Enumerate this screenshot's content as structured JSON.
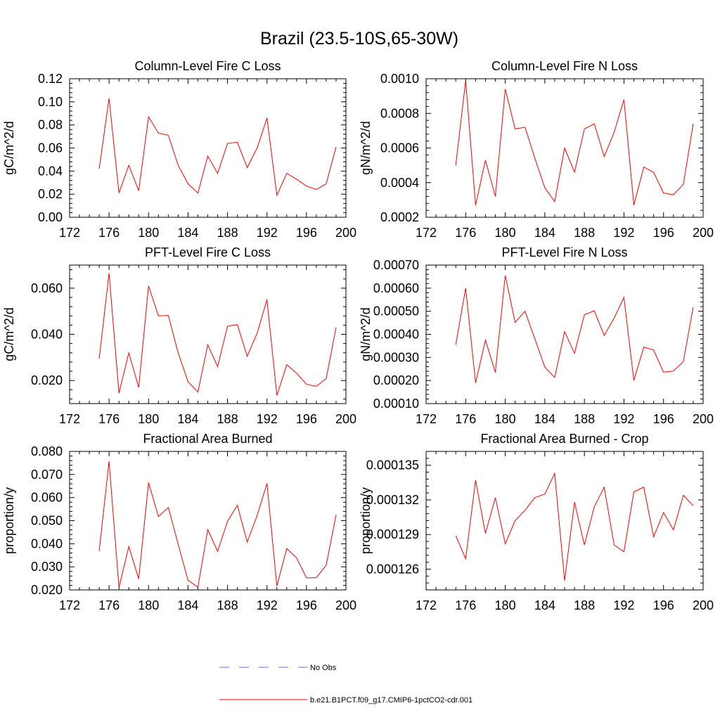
{
  "figure": {
    "title": "Brazil (23.5-10S,65-30W)"
  },
  "legend": {
    "items": [
      {
        "label": "No Obs",
        "color": "#6a6ad8",
        "dash": "dashed"
      },
      {
        "label": "b.e21.B1PCT.f09_g17.CMIP6-1pctCO2-cdr.001",
        "color": "#ff0000",
        "dash": "solid"
      }
    ]
  },
  "chart_data": [
    {
      "type": "line",
      "title": "Column-Level Fire C Loss",
      "ylabel": "gC/m^2/d",
      "xlim": [
        172,
        200
      ],
      "x_ticks": [
        "172",
        "176",
        "180",
        "184",
        "188",
        "192",
        "196",
        "200"
      ],
      "ylim": [
        0,
        0.12
      ],
      "y_ticks": [
        0,
        0.02,
        0.04,
        0.06,
        0.08,
        0.1,
        0.12
      ],
      "y_tick_labels": [
        "0.00",
        "0.02",
        "0.04",
        "0.06",
        "0.08",
        "0.10",
        "0.12"
      ],
      "series": [
        {
          "name": "b.e21.B1PCT.f09_g17.CMIP6-1pctCO2-cdr.001",
          "color": "#ff0000",
          "x": [
            175,
            176,
            177,
            178,
            179,
            180,
            181,
            182,
            183,
            184,
            185,
            186,
            187,
            188,
            189,
            190,
            191,
            192,
            193,
            194,
            195,
            196,
            197,
            198,
            199
          ],
          "y": [
            0.042,
            0.103,
            0.021,
            0.045,
            0.023,
            0.087,
            0.073,
            0.071,
            0.045,
            0.029,
            0.021,
            0.053,
            0.038,
            0.064,
            0.065,
            0.043,
            0.06,
            0.086,
            0.019,
            0.038,
            0.033,
            0.027,
            0.024,
            0.029,
            0.061
          ]
        }
      ]
    },
    {
      "type": "line",
      "title": "Column-Level Fire N Loss",
      "ylabel": "gN/m^2/d",
      "xlim": [
        172,
        200
      ],
      "x_ticks": [
        "172",
        "176",
        "180",
        "184",
        "188",
        "192",
        "196",
        "200"
      ],
      "ylim": [
        0.0002,
        0.001
      ],
      "y_ticks": [
        0.0002,
        0.0004,
        0.0006,
        0.0008,
        0.001
      ],
      "y_tick_labels": [
        "0.0002",
        "0.0004",
        "0.0006",
        "0.0008",
        "0.0010"
      ],
      "series": [
        {
          "name": "b.e21.B1PCT.f09_g17.CMIP6-1pctCO2-cdr.001",
          "color": "#ff0000",
          "x": [
            175,
            176,
            177,
            178,
            179,
            180,
            181,
            182,
            183,
            184,
            185,
            186,
            187,
            188,
            189,
            190,
            191,
            192,
            193,
            194,
            195,
            196,
            197,
            198,
            199
          ],
          "y": [
            0.0005,
            0.00099,
            0.00027,
            0.00053,
            0.00032,
            0.00094,
            0.00071,
            0.00072,
            0.00054,
            0.00037,
            0.00029,
            0.0006,
            0.00046,
            0.00071,
            0.00074,
            0.00055,
            0.00069,
            0.00088,
            0.00027,
            0.00049,
            0.00046,
            0.00034,
            0.00033,
            0.00039,
            0.00074
          ]
        }
      ]
    },
    {
      "type": "line",
      "title": "PFT-Level Fire C Loss",
      "ylabel": "gC/m^2/d",
      "xlim": [
        172,
        200
      ],
      "x_ticks": [
        "172",
        "176",
        "180",
        "184",
        "188",
        "192",
        "196",
        "200"
      ],
      "ylim": [
        0.01,
        0.07
      ],
      "y_ticks": [
        0.02,
        0.04,
        0.06
      ],
      "y_tick_labels": [
        "0.020",
        "0.040",
        "0.060"
      ],
      "series": [
        {
          "name": "b.e21.B1PCT.f09_g17.CMIP6-1pctCO2-cdr.001",
          "color": "#ff0000",
          "x": [
            175,
            176,
            177,
            178,
            179,
            180,
            181,
            182,
            183,
            184,
            185,
            186,
            187,
            188,
            189,
            190,
            191,
            192,
            193,
            194,
            195,
            196,
            197,
            198,
            199
          ],
          "y": [
            0.0295,
            0.0665,
            0.0145,
            0.032,
            0.017,
            0.061,
            0.048,
            0.0482,
            0.032,
            0.0195,
            0.015,
            0.0355,
            0.026,
            0.0435,
            0.0442,
            0.0305,
            0.0405,
            0.055,
            0.0135,
            0.0268,
            0.0232,
            0.0183,
            0.0175,
            0.0208,
            0.043
          ]
        }
      ]
    },
    {
      "type": "line",
      "title": "PFT-Level Fire N Loss",
      "ylabel": "gN/m^2/d",
      "xlim": [
        172,
        200
      ],
      "x_ticks": [
        "172",
        "176",
        "180",
        "184",
        "188",
        "192",
        "196",
        "200"
      ],
      "ylim": [
        0.0001,
        0.0007
      ],
      "y_ticks": [
        0.0001,
        0.0002,
        0.0003,
        0.0004,
        0.0005,
        0.0006,
        0.0007
      ],
      "y_tick_labels": [
        "0.00010",
        "0.00020",
        "0.00030",
        "0.00040",
        "0.00050",
        "0.00060",
        "0.00070"
      ],
      "series": [
        {
          "name": "b.e21.B1PCT.f09_g17.CMIP6-1pctCO2-cdr.001",
          "color": "#ff0000",
          "x": [
            175,
            176,
            177,
            178,
            179,
            180,
            181,
            182,
            183,
            184,
            185,
            186,
            187,
            188,
            189,
            190,
            191,
            192,
            193,
            194,
            195,
            196,
            197,
            198,
            199
          ],
          "y": [
            0.000355,
            0.0006,
            0.00019,
            0.000375,
            0.000235,
            0.000655,
            0.000452,
            0.0005,
            0.00038,
            0.000258,
            0.000213,
            0.000412,
            0.000318,
            0.000485,
            0.000502,
            0.000395,
            0.00047,
            0.00056,
            0.0002,
            0.000345,
            0.000332,
            0.000236,
            0.000241,
            0.000282,
            0.000518
          ]
        }
      ]
    },
    {
      "type": "line",
      "title": "Fractional Area Burned",
      "ylabel": "proportion/y",
      "xlim": [
        172,
        200
      ],
      "x_ticks": [
        "172",
        "176",
        "180",
        "184",
        "188",
        "192",
        "196",
        "200"
      ],
      "ylim": [
        0.02,
        0.08
      ],
      "y_ticks": [
        0.02,
        0.03,
        0.04,
        0.05,
        0.06,
        0.07,
        0.08
      ],
      "y_tick_labels": [
        "0.020",
        "0.030",
        "0.040",
        "0.050",
        "0.060",
        "0.070",
        "0.080"
      ],
      "series": [
        {
          "name": "b.e21.B1PCT.f09_g17.CMIP6-1pctCO2-cdr.001",
          "color": "#ff0000",
          "x": [
            175,
            176,
            177,
            178,
            179,
            180,
            181,
            182,
            183,
            184,
            185,
            186,
            187,
            188,
            189,
            190,
            191,
            192,
            193,
            194,
            195,
            196,
            197,
            198,
            199
          ],
          "y": [
            0.0368,
            0.0757,
            0.021,
            0.0388,
            0.0248,
            0.0665,
            0.0518,
            0.0557,
            0.0398,
            0.0242,
            0.0212,
            0.0461,
            0.0367,
            0.0497,
            0.0567,
            0.0407,
            0.0522,
            0.0661,
            0.0217,
            0.0379,
            0.0339,
            0.0252,
            0.0253,
            0.0307,
            0.0525
          ]
        }
      ]
    },
    {
      "type": "line",
      "title": "Fractional Area Burned - Crop",
      "ylabel": "proportion/y",
      "xlim": [
        172,
        200
      ],
      "x_ticks": [
        "172",
        "176",
        "180",
        "184",
        "188",
        "192",
        "196",
        "200"
      ],
      "ylim": [
        0.0001242,
        0.0001362
      ],
      "y_ticks": [
        0.000126,
        0.000129,
        0.000132,
        0.000135
      ],
      "y_tick_labels": [
        "0.000126",
        "0.000129",
        "0.000132",
        "0.000135"
      ],
      "series": [
        {
          "name": "b.e21.B1PCT.f09_g17.CMIP6-1pctCO2-cdr.001",
          "color": "#ff0000",
          "x": [
            175,
            176,
            177,
            178,
            179,
            180,
            181,
            182,
            183,
            184,
            185,
            186,
            187,
            188,
            189,
            190,
            191,
            192,
            193,
            194,
            195,
            196,
            197,
            198,
            199
          ],
          "y": [
            0.0001289,
            0.0001269,
            0.0001337,
            0.0001291,
            0.0001322,
            0.0001282,
            0.0001302,
            0.0001311,
            0.0001322,
            0.0001325,
            0.0001343,
            0.000125,
            0.0001318,
            0.0001281,
            0.0001314,
            0.0001331,
            0.0001281,
            0.0001275,
            0.0001327,
            0.0001331,
            0.0001288,
            0.0001309,
            0.0001294,
            0.0001324,
            0.0001315
          ]
        }
      ]
    }
  ]
}
